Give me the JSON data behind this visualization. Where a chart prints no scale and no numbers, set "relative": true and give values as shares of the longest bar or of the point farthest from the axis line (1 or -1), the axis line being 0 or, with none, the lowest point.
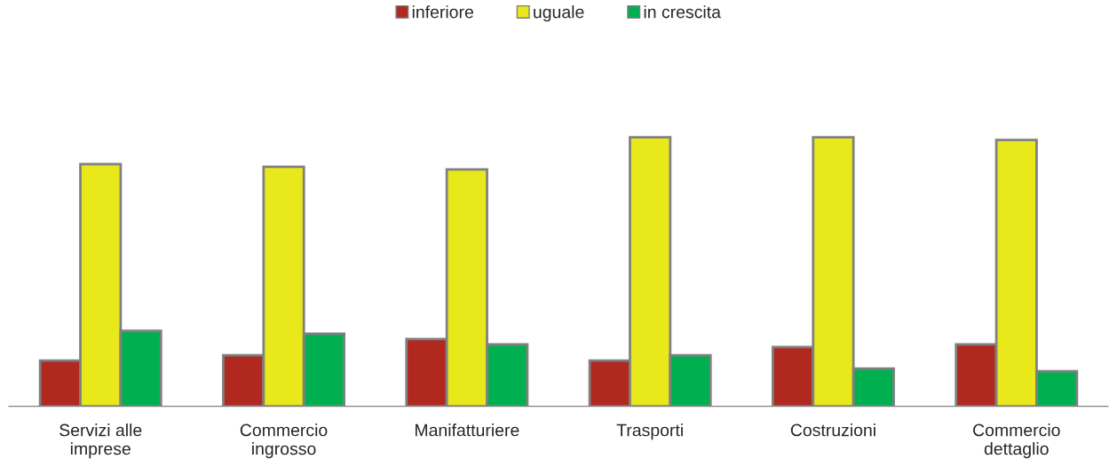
{
  "chart_data": {
    "type": "bar",
    "relative": true,
    "legend": "top",
    "grid": false,
    "categories": [
      "Servizi alle\nimprese",
      "Commercio\ningrosso",
      "Manifatturiere",
      "Trasporti",
      "Costruzioni",
      "Commercio\ndettaglio"
    ],
    "series": [
      {
        "name": "inferiore",
        "color": "#b0281e",
        "values": [
          0.17,
          0.19,
          0.25,
          0.17,
          0.22,
          0.23
        ]
      },
      {
        "name": "uguale",
        "color": "#e8e81a",
        "values": [
          0.9,
          0.89,
          0.88,
          1.0,
          1.0,
          0.99
        ]
      },
      {
        "name": "in crescita",
        "color": "#00b050",
        "values": [
          0.28,
          0.27,
          0.23,
          0.19,
          0.14,
          0.13
        ]
      }
    ]
  }
}
